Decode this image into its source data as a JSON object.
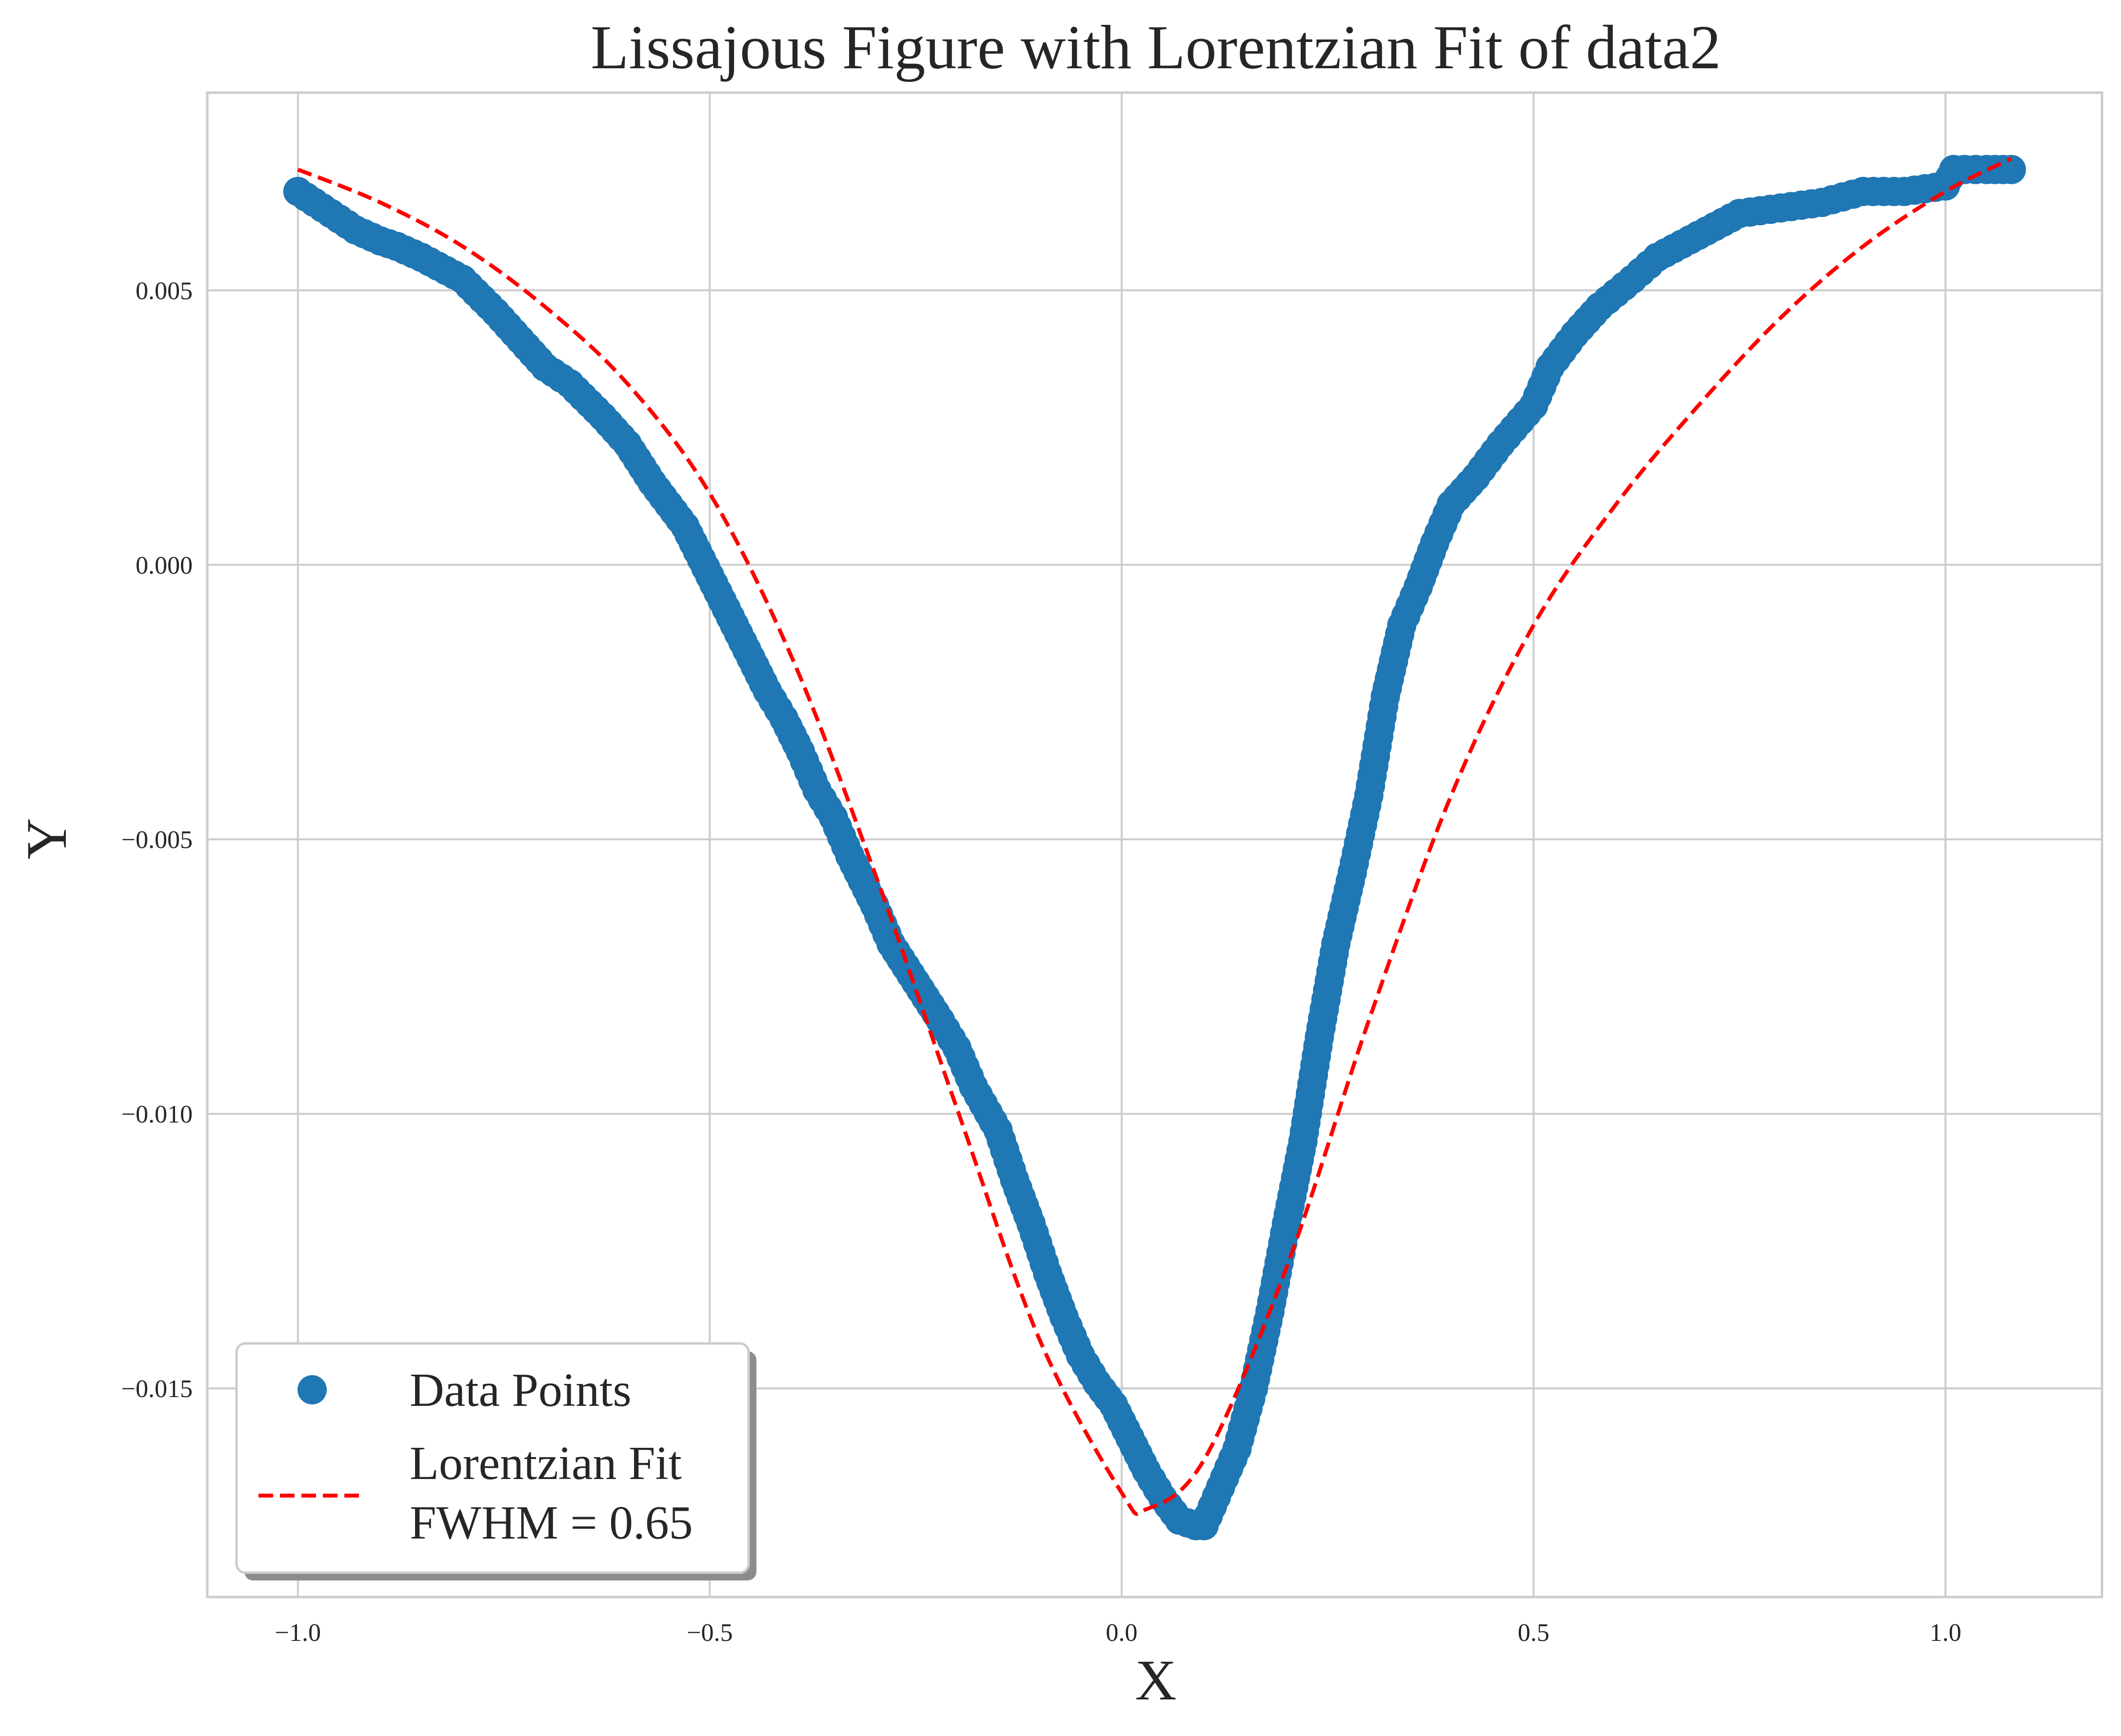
{
  "chart_data": {
    "type": "scatter",
    "title": "Lissajous Figure with Lorentzian Fit of data2",
    "xlabel": "X",
    "ylabel": "Y",
    "xlim": [
      -1.11,
      1.19
    ],
    "ylim": [
      -0.0188,
      0.0086
    ],
    "grid": true,
    "legend_position": "lower-left",
    "x_ticks": [
      -1.0,
      -0.5,
      0.0,
      0.5,
      1.0
    ],
    "x_tick_labels": [
      "−1.0",
      "−0.5",
      "0.0",
      "0.5",
      "1.0"
    ],
    "y_ticks": [
      0.005,
      0.0,
      -0.005,
      -0.01,
      -0.015
    ],
    "y_tick_labels": [
      "0.005",
      "0.000",
      "−0.005",
      "−0.010",
      "−0.015"
    ],
    "colors": {
      "data": "#1f77b4",
      "fit": "#ff0000",
      "grid": "#cccccc",
      "frame": "#cccccc"
    },
    "series": [
      {
        "name": "Data Points",
        "type": "scatter",
        "x": [
          -1.0,
          -0.97,
          -0.93,
          -0.9,
          -0.88,
          -0.85,
          -0.8,
          -0.76,
          -0.73,
          -0.7,
          -0.67,
          -0.63,
          -0.6,
          -0.57,
          -0.53,
          -0.5,
          -0.47,
          -0.45,
          -0.43,
          -0.41,
          -0.39,
          -0.37,
          -0.35,
          -0.33,
          -0.3,
          -0.28,
          -0.25,
          -0.22,
          -0.2,
          -0.18,
          -0.15,
          -0.13,
          -0.11,
          -0.09,
          -0.07,
          -0.05,
          -0.03,
          -0.01,
          0.01,
          0.03,
          0.05,
          0.07,
          0.09,
          0.1,
          0.12,
          0.14,
          0.16,
          0.18,
          0.2,
          0.22,
          0.24,
          0.26,
          0.28,
          0.3,
          0.32,
          0.34,
          0.36,
          0.38,
          0.4,
          0.43,
          0.46,
          0.5,
          0.52,
          0.55,
          0.58,
          0.62,
          0.65,
          0.7,
          0.75,
          0.8,
          0.85,
          0.9,
          0.95,
          1.0,
          1.01,
          1.05,
          1.08
        ],
        "y": [
          0.0068,
          0.0065,
          0.0061,
          0.0059,
          0.0058,
          0.0056,
          0.0052,
          0.0046,
          0.0041,
          0.0036,
          0.0033,
          0.0027,
          0.0022,
          0.0015,
          0.0007,
          -0.0002,
          -0.0011,
          -0.0017,
          -0.0023,
          -0.0028,
          -0.0034,
          -0.0041,
          -0.0046,
          -0.0053,
          -0.0062,
          -0.0069,
          -0.0076,
          -0.0083,
          -0.0088,
          -0.0095,
          -0.0103,
          -0.0112,
          -0.012,
          -0.0129,
          -0.0137,
          -0.0144,
          -0.0149,
          -0.0153,
          -0.0159,
          -0.0165,
          -0.017,
          -0.0174,
          -0.0175,
          -0.0175,
          -0.0168,
          -0.0161,
          -0.015,
          -0.0136,
          -0.012,
          -0.0105,
          -0.0086,
          -0.0069,
          -0.0056,
          -0.0042,
          -0.0024,
          -0.0011,
          -0.0004,
          0.0004,
          0.0011,
          0.0016,
          0.0022,
          0.0029,
          0.0036,
          0.0042,
          0.0047,
          0.0052,
          0.0056,
          0.006,
          0.0064,
          0.0065,
          0.0066,
          0.0068,
          0.0068,
          0.0069,
          0.0072,
          0.0072,
          0.0072
        ]
      },
      {
        "name": "Lorentzian Fit\nFWHM = 0.65",
        "type": "line",
        "style": "dashed",
        "x": [
          -1.0,
          -0.9,
          -0.8,
          -0.7,
          -0.6,
          -0.5,
          -0.4,
          -0.3,
          -0.2,
          -0.1,
          0.0,
          0.03,
          0.1,
          0.2,
          0.3,
          0.4,
          0.5,
          0.6,
          0.7,
          0.8,
          0.9,
          1.0,
          1.08
        ],
        "y": [
          0.0072,
          0.0066,
          0.0058,
          0.0047,
          0.0033,
          0.0013,
          -0.0017,
          -0.0056,
          -0.0099,
          -0.0141,
          -0.0169,
          -0.0172,
          -0.0163,
          -0.0128,
          -0.0083,
          -0.0042,
          -0.0011,
          0.0011,
          0.0029,
          0.0045,
          0.0058,
          0.0068,
          0.0074
        ]
      }
    ],
    "legend": {
      "entries": [
        {
          "label": "Data Points",
          "marker": "circle"
        },
        {
          "label_lines": [
            "Lorentzian Fit",
            "FWHM = 0.65"
          ],
          "marker": "dashed-line"
        }
      ]
    }
  }
}
